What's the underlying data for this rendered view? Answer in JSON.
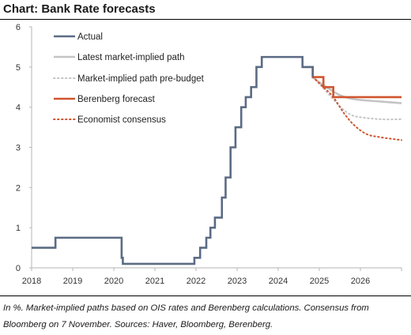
{
  "title": "Chart: Bank Rate forecasts",
  "footnote": "In %. Market-implied paths based on OIS rates and Berenberg calculations. Consensus from Bloomberg on 7 November. Sources: Haver, Bloomberg, Berenberg.",
  "chart_data": {
    "type": "line",
    "title": "Chart: Bank Rate forecasts",
    "xlabel": "",
    "ylabel": "",
    "xlim": [
      2018,
      2027
    ],
    "ylim": [
      0,
      6
    ],
    "x_ticks": [
      "2018",
      "2019",
      "2020",
      "2021",
      "2022",
      "2023",
      "2024",
      "2025",
      "2026"
    ],
    "y_ticks": [
      "0",
      "1",
      "2",
      "3",
      "4",
      "5",
      "6"
    ],
    "grid": false,
    "legend_position": "top-left",
    "series": [
      {
        "name": "Actual",
        "color": "#5b6b84",
        "style": "step",
        "dash": "solid",
        "points": [
          [
            2018.0,
            0.5
          ],
          [
            2018.58,
            0.75
          ],
          [
            2020.19,
            0.25
          ],
          [
            2020.22,
            0.1
          ],
          [
            2021.96,
            0.25
          ],
          [
            2022.1,
            0.5
          ],
          [
            2022.25,
            0.75
          ],
          [
            2022.35,
            1.0
          ],
          [
            2022.46,
            1.25
          ],
          [
            2022.63,
            1.75
          ],
          [
            2022.72,
            2.25
          ],
          [
            2022.84,
            3.0
          ],
          [
            2022.96,
            3.5
          ],
          [
            2023.1,
            4.0
          ],
          [
            2023.21,
            4.25
          ],
          [
            2023.34,
            4.5
          ],
          [
            2023.47,
            5.0
          ],
          [
            2023.6,
            5.25
          ],
          [
            2024.59,
            5.0
          ],
          [
            2024.84,
            4.75
          ]
        ]
      },
      {
        "name": "Latest market-implied path",
        "color": "#c4c4c4",
        "style": "smooth",
        "dash": "solid",
        "points": [
          [
            2024.84,
            4.75
          ],
          [
            2025.0,
            4.62
          ],
          [
            2025.25,
            4.45
          ],
          [
            2025.5,
            4.3
          ],
          [
            2025.75,
            4.22
          ],
          [
            2026.0,
            4.18
          ],
          [
            2026.5,
            4.14
          ],
          [
            2027.0,
            4.1
          ]
        ]
      },
      {
        "name": "Market-implied path pre-budget",
        "color": "#c4c4c4",
        "style": "smooth",
        "dash": "dotted",
        "points": [
          [
            2024.84,
            4.75
          ],
          [
            2025.0,
            4.58
          ],
          [
            2025.25,
            4.3
          ],
          [
            2025.5,
            4.02
          ],
          [
            2025.75,
            3.82
          ],
          [
            2026.0,
            3.75
          ],
          [
            2026.5,
            3.7
          ],
          [
            2027.0,
            3.7
          ]
        ]
      },
      {
        "name": "Berenberg forecast",
        "color": "#d0552e",
        "style": "step",
        "dash": "solid",
        "points": [
          [
            2024.59,
            5.0
          ],
          [
            2024.84,
            4.75
          ],
          [
            2025.1,
            4.5
          ],
          [
            2025.34,
            4.25
          ],
          [
            2027.0,
            4.25
          ]
        ]
      },
      {
        "name": "Economist consensus",
        "color": "#d0552e",
        "style": "smooth",
        "dash": "dotted",
        "points": [
          [
            2024.84,
            4.75
          ],
          [
            2025.1,
            4.5
          ],
          [
            2025.34,
            4.25
          ],
          [
            2025.6,
            3.85
          ],
          [
            2025.85,
            3.55
          ],
          [
            2026.15,
            3.33
          ],
          [
            2026.5,
            3.25
          ],
          [
            2027.0,
            3.18
          ]
        ]
      }
    ]
  }
}
